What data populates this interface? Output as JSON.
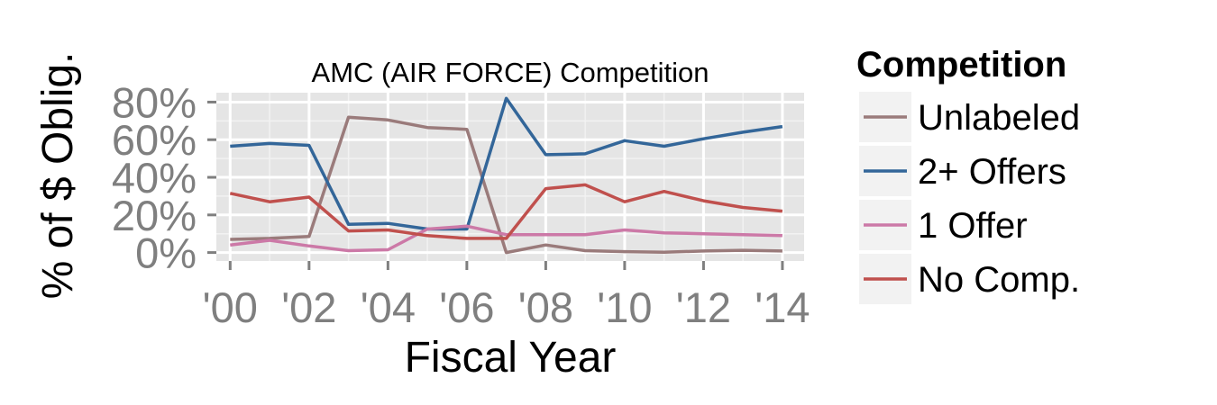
{
  "chart_data": {
    "type": "line",
    "title": "AMC (AIR FORCE) Competition",
    "xlabel": "Fiscal Year",
    "ylabel": "% of $ Oblig.",
    "x": [
      2000,
      2001,
      2002,
      2003,
      2004,
      2005,
      2006,
      2007,
      2008,
      2009,
      2010,
      2011,
      2012,
      2013,
      2014
    ],
    "xlim": [
      1999.65,
      2014.55
    ],
    "ylim": [
      -0.045,
      0.85
    ],
    "x_ticks": [
      2000,
      2002,
      2004,
      2006,
      2008,
      2010,
      2012,
      2014
    ],
    "x_tick_labels": [
      "'00",
      "'02",
      "'04",
      "'06",
      "'08",
      "'10",
      "'12",
      "'14"
    ],
    "y_ticks": [
      0,
      0.2,
      0.4,
      0.6,
      0.8
    ],
    "y_tick_labels": [
      "0%",
      "20%",
      "40%",
      "60%",
      "80%"
    ],
    "grid": true,
    "legend": {
      "title": "Competition",
      "position": "right",
      "entries": [
        "Unlabeled",
        "2+ Offers",
        "1 Offer",
        "No Comp."
      ]
    },
    "series": [
      {
        "name": "Unlabeled",
        "color": "#9a7b7b",
        "values": [
          0.07,
          0.075,
          0.085,
          0.72,
          0.705,
          0.665,
          0.655,
          0.0,
          0.04,
          0.01,
          0.005,
          0.002,
          0.008,
          0.012,
          0.008
        ]
      },
      {
        "name": "2+ Offers",
        "color": "#336699",
        "values": [
          0.565,
          0.58,
          0.57,
          0.15,
          0.155,
          0.125,
          0.125,
          0.82,
          0.52,
          0.525,
          0.595,
          0.565,
          0.605,
          0.64,
          0.67
        ]
      },
      {
        "name": "1 Offer",
        "color": "#cc79a7",
        "values": [
          0.04,
          0.065,
          0.035,
          0.01,
          0.015,
          0.125,
          0.14,
          0.095,
          0.095,
          0.095,
          0.12,
          0.105,
          0.1,
          0.095,
          0.09
        ]
      },
      {
        "name": "No Comp.",
        "color": "#c0504d",
        "values": [
          0.315,
          0.27,
          0.295,
          0.115,
          0.12,
          0.09,
          0.075,
          0.075,
          0.34,
          0.36,
          0.27,
          0.325,
          0.275,
          0.24,
          0.22
        ]
      }
    ],
    "colors": {
      "panel_bg": "#e5e5e5",
      "grid_major": "#ffffff",
      "grid_minor": "#f2f2f2",
      "tick_text": "#7f7f7f",
      "legend_key_bg": "#f2f2f2"
    }
  }
}
